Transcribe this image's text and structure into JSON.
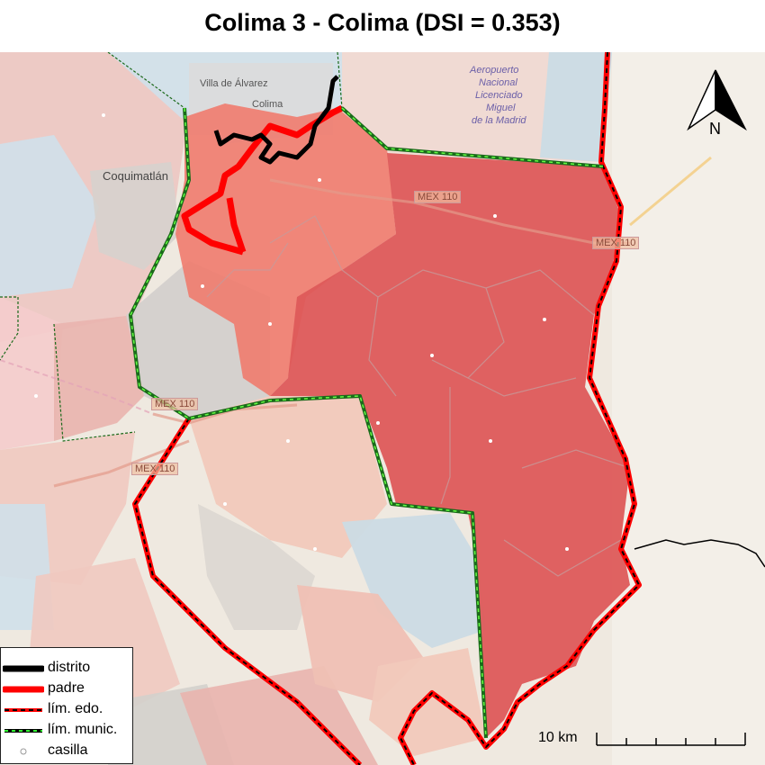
{
  "title": "Colima 3 - Colima (DSI = 0.353)",
  "north_label": "N",
  "scale_label": "10 km",
  "places": {
    "city": "Villa de Álvarez",
    "city2": "Colima",
    "town": "Coquimatlán",
    "airport_1": "Aeropuerto",
    "airport_2": "Nacional",
    "airport_3": "Licenciado",
    "airport_4": "Miguel",
    "airport_5": "de la Madrid"
  },
  "roads": {
    "r1": "MEX 110",
    "r2": "MEX 110",
    "r3": "MEX 110",
    "r4": "MEX 110"
  },
  "legend": [
    {
      "label": "distrito",
      "symbol": "thick-black-line",
      "color": "#000000"
    },
    {
      "label": "padre",
      "symbol": "thick-red-line",
      "color": "#ff0000"
    },
    {
      "label": "lím. edo.",
      "symbol": "red-black-dashed-line",
      "color": "#ff0000"
    },
    {
      "label": "lím. munic.",
      "symbol": "green-black-dashed-line",
      "color": "#00cc00"
    },
    {
      "label": "casilla",
      "symbol": "white-circle",
      "color": "#ffffff"
    }
  ],
  "colors": {
    "district_fill": "#dd5a5a",
    "parent_fill": "#f07b6e",
    "neighbor_pink": "#e9b7b0",
    "neighbor_blue": "#c9dbe6",
    "neighbor_grey": "#d3d0cc",
    "base_map": "#efe9e0"
  }
}
